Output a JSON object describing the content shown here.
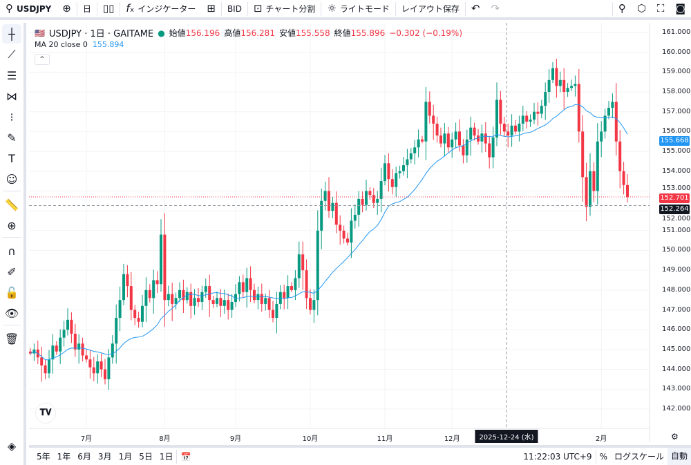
{
  "toolbar": {
    "symbol": "USDJPY",
    "interval": "日",
    "indicators": "インジケーター",
    "bid": "BID",
    "split": "チャート分割",
    "theme": "ライトモード",
    "save_layout": "レイアウト保存"
  },
  "legend": {
    "title": "USDJPY · 1日 · GAITAME",
    "open_label": "始値",
    "open": "156.196",
    "high_label": "高値",
    "high": "156.281",
    "low_label": "安値",
    "low": "155.558",
    "close_label": "終値",
    "close": "155.896",
    "change": "−0.302 (−0.19%)",
    "ma_label": "MA 20 close 0",
    "ma_value": "155.894",
    "collapse": "^"
  },
  "price_tags": {
    "ma": "155.668",
    "last": "152.701",
    "crosshair": "152.264"
  },
  "bottom": {
    "ranges": [
      "5年",
      "1年",
      "6月",
      "3月",
      "1月",
      "5日",
      "1日"
    ],
    "time": "11:22:03 UTC+9",
    "percent": "%",
    "log": "ログスケール",
    "auto": "自動"
  },
  "logo": "TV",
  "colors": {
    "up": "#089981",
    "down": "#f23645",
    "ma": "#2196f3"
  },
  "chart_data": {
    "type": "candlestick",
    "symbol": "USDJPY",
    "interval": "1D",
    "ylim": [
      141.5,
      161.3
    ],
    "y_ticks": [
      "142.000",
      "143.000",
      "144.000",
      "145.000",
      "146.000",
      "147.000",
      "148.000",
      "149.000",
      "150.000",
      "151.000",
      "152.000",
      "153.000",
      "154.000",
      "155.000",
      "156.000",
      "157.000",
      "158.000",
      "159.000",
      "160.000",
      "161.000"
    ],
    "x_ticks": [
      {
        "label": "7月",
        "index": 15
      },
      {
        "label": "8月",
        "index": 36
      },
      {
        "label": "9月",
        "index": 55
      },
      {
        "label": "10月",
        "index": 75
      },
      {
        "label": "11月",
        "index": 95
      },
      {
        "label": "12月",
        "index": 113
      },
      {
        "label": "2月",
        "index": 153
      }
    ],
    "crosshair": {
      "label": "2025-12-24 (水)",
      "index": 128,
      "price": 152.264
    },
    "ma_period": 20,
    "first_open": 144.9,
    "closes": [
      144.8,
      145.0,
      144.6,
      144.2,
      143.8,
      144.5,
      145.2,
      144.9,
      145.6,
      146.0,
      146.5,
      145.8,
      145.0,
      145.3,
      144.7,
      144.5,
      144.1,
      143.8,
      144.4,
      144.0,
      143.5,
      144.6,
      145.3,
      146.6,
      147.5,
      148.8,
      148.2,
      147.0,
      146.6,
      146.4,
      147.2,
      148.0,
      147.6,
      148.5,
      148.3,
      150.8,
      147.5,
      147.8,
      147.3,
      147.6,
      148.0,
      147.5,
      147.9,
      147.2,
      147.6,
      147.4,
      147.9,
      148.2,
      147.5,
      147.3,
      147.6,
      147.2,
      147.5,
      147.0,
      147.4,
      147.8,
      148.4,
      147.9,
      148.6,
      148.0,
      147.5,
      147.8,
      147.3,
      147.6,
      147.0,
      146.6,
      147.3,
      147.9,
      147.6,
      148.2,
      148.0,
      148.6,
      149.8,
      149.0,
      147.6,
      147.0,
      147.5,
      151.0,
      152.5,
      153.0,
      152.0,
      152.4,
      151.3,
      151.0,
      150.6,
      150.4,
      151.5,
      151.8,
      152.6,
      152.3,
      153.0,
      152.8,
      152.4,
      152.6,
      153.5,
      154.4,
      153.6,
      153.2,
      153.9,
      154.0,
      154.3,
      154.6,
      154.9,
      155.2,
      155.6,
      155.5,
      157.5,
      156.8,
      156.4,
      155.8,
      155.4,
      155.9,
      155.2,
      155.6,
      156.0,
      155.3,
      154.8,
      155.6,
      156.2,
      155.8,
      155.5,
      155.9,
      155.4,
      154.7,
      155.7,
      157.6,
      156.4,
      156.0,
      155.8,
      156.3,
      156.0,
      156.4,
      156.8,
      156.5,
      156.6,
      157.0,
      156.9,
      157.3,
      158.0,
      158.6,
      159.2,
      158.3,
      158.6,
      158.0,
      158.2,
      158.3,
      158.4,
      156.0,
      153.7,
      152.2,
      154.0,
      153.0,
      155.5,
      156.0,
      156.8,
      157.2,
      157.5,
      155.5,
      154.0,
      153.3,
      152.7
    ]
  }
}
